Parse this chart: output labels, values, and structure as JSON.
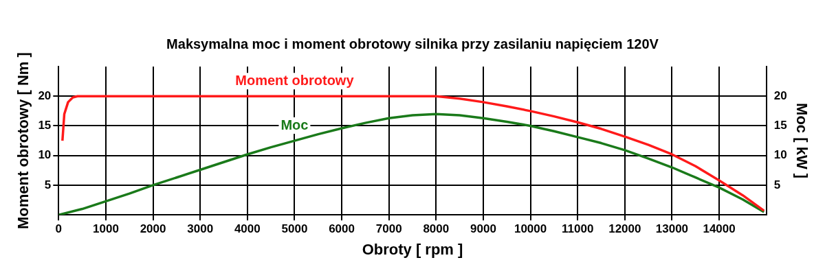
{
  "chart_data": {
    "type": "line",
    "title": "Maksymalna moc i moment obrotowy silnika przy zasilaniu napięciem 120V",
    "xlabel": "Obroty [ rpm ]",
    "ylabel": "Moment obrotowy [ Nm ]",
    "y2label": "Moc [ kW ]",
    "xlim": [
      0,
      15000
    ],
    "xticks": [
      0,
      1000,
      2000,
      3000,
      4000,
      5000,
      6000,
      7000,
      8000,
      9000,
      10000,
      11000,
      12000,
      13000,
      14000
    ],
    "ylim": [
      0,
      25
    ],
    "yticks": [
      5,
      10,
      15,
      20
    ],
    "y2lim": [
      0,
      25
    ],
    "y2ticks": [
      5,
      10,
      15,
      20
    ],
    "grid": true,
    "legend": false,
    "marker": "none",
    "line_style": "solid",
    "series": [
      {
        "name": "Moment obrotowy",
        "color": "#ff1a1a",
        "x": [
          80,
          120,
          200,
          300,
          400,
          1000,
          2000,
          3000,
          4000,
          5000,
          6000,
          7000,
          8000,
          8500,
          9000,
          9500,
          10000,
          10500,
          11000,
          11500,
          12000,
          12500,
          13000,
          13500,
          14000,
          14500,
          14950
        ],
        "values": [
          12.5,
          17,
          19,
          19.8,
          20,
          20,
          20,
          20,
          20,
          20,
          20,
          20,
          20,
          19.6,
          19,
          18.3,
          17.5,
          16.6,
          15.6,
          14.5,
          13.2,
          11.8,
          10.2,
          8.2,
          5.8,
          3.3,
          0.7
        ]
      },
      {
        "name": "Moc",
        "color": "#1a7a1a",
        "axis": "y2",
        "x": [
          0,
          500,
          1000,
          1500,
          2000,
          2500,
          3000,
          3500,
          4000,
          4500,
          5000,
          5500,
          6000,
          6500,
          7000,
          7500,
          8000,
          8500,
          9000,
          9500,
          10000,
          10500,
          11000,
          11500,
          12000,
          12500,
          13000,
          13500,
          14000,
          14500,
          14950
        ],
        "values": [
          0,
          1,
          2.3,
          3.6,
          5,
          6.3,
          7.6,
          8.9,
          10.2,
          11.4,
          12.5,
          13.6,
          14.6,
          15.5,
          16.3,
          16.8,
          17,
          16.8,
          16.3,
          15.7,
          15,
          14.1,
          13.1,
          12.1,
          10.9,
          9.5,
          8,
          6.3,
          4.6,
          2.6,
          0.5
        ]
      }
    ]
  }
}
